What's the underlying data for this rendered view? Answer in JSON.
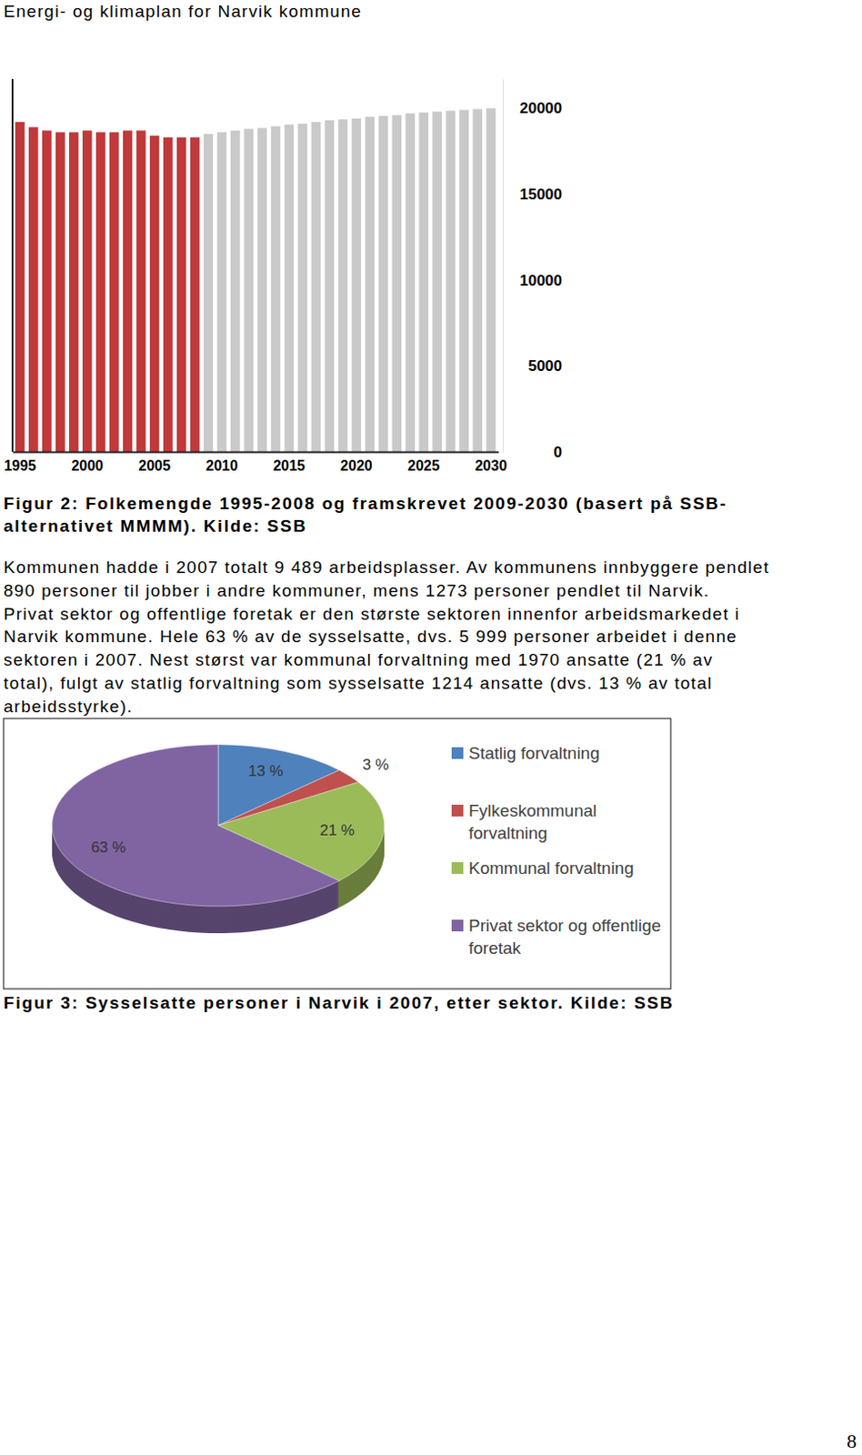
{
  "header": "Energi- og klimaplan for Narvik kommune",
  "chart_data": [
    {
      "type": "bar",
      "categories": [
        "1995",
        null,
        null,
        null,
        null,
        "2000",
        null,
        null,
        null,
        null,
        "2005",
        null,
        null,
        null,
        null,
        "2010",
        null,
        null,
        null,
        null,
        "2015",
        null,
        null,
        null,
        null,
        "2020",
        null,
        null,
        null,
        null,
        "2025",
        null,
        null,
        null,
        null,
        "2030"
      ],
      "values": [
        19200,
        18900,
        18700,
        18600,
        18600,
        18700,
        18600,
        18600,
        18700,
        18700,
        18400,
        18300,
        18300,
        18300,
        18500,
        18600,
        18700,
        18800,
        18850,
        18950,
        19050,
        19100,
        19200,
        19300,
        19350,
        19400,
        19500,
        19550,
        19600,
        19700,
        19750,
        19800,
        19850,
        19900,
        19950,
        20000
      ],
      "colors": [
        "#c0393b",
        "#c0393b",
        "#c0393b",
        "#c0393b",
        "#c0393b",
        "#c0393b",
        "#c0393b",
        "#c0393b",
        "#c0393b",
        "#c0393b",
        "#c0393b",
        "#c0393b",
        "#c0393b",
        "#c0393b",
        "#c9c9c9",
        "#c9c9c9",
        "#c9c9c9",
        "#c9c9c9",
        "#c9c9c9",
        "#c9c9c9",
        "#c9c9c9",
        "#c9c9c9",
        "#c9c9c9",
        "#c9c9c9",
        "#c9c9c9",
        "#c9c9c9",
        "#c9c9c9",
        "#c9c9c9",
        "#c9c9c9",
        "#c9c9c9",
        "#c9c9c9",
        "#c9c9c9",
        "#c9c9c9",
        "#c9c9c9",
        "#c9c9c9",
        "#c9c9c9"
      ],
      "ylim": [
        0,
        21700
      ],
      "yticks": [
        0,
        5000,
        10000,
        15000,
        20000
      ]
    },
    {
      "type": "pie",
      "categories": [
        "Statlig forvaltning",
        "Fylkeskommunal forvaltning",
        "Kommunal forvaltning",
        "Privat sektor og offentlige foretak"
      ],
      "values": [
        13,
        3,
        21,
        63
      ],
      "value_labels": [
        "13 %",
        "3 %",
        "21 %",
        "63 %"
      ],
      "colors": [
        "#4f81bd",
        "#c0504d",
        "#9bbb59",
        "#8064a2"
      ],
      "data_labels": true,
      "legend": "right"
    }
  ],
  "captions": [
    [
      "Figur 2: Folkemengde 1995-2008 og framskrevet 2009-2030 (basert på SSB-",
      "alternativet MMMM). Kilde: SSB"
    ],
    [
      "Figur 3: Sysselsatte personer i Narvik i 2007, etter sektor. Kilde: SSB"
    ]
  ],
  "paragraph": [
    "Kommunen hadde i 2007 totalt 9 489 arbeidsplasser. Av kommunens innbyggere pendlet",
    "890 personer til jobber i andre kommuner, mens 1273 personer pendlet til Narvik.",
    "Privat sektor og offentlige foretak er den største sektoren innenfor arbeidsmarkedet i",
    "Narvik kommune. Hele 63 % av de sysselsatte, dvs. 5 999 personer arbeidet i denne",
    "sektoren i 2007. Nest størst var kommunal forvaltning med 1970 ansatte (21 % av",
    "total), fulgt av statlig forvaltning som sysselsatte 1214 ansatte (dvs. 13 % av total",
    "arbeidsstyrke)."
  ],
  "page_number": 8
}
